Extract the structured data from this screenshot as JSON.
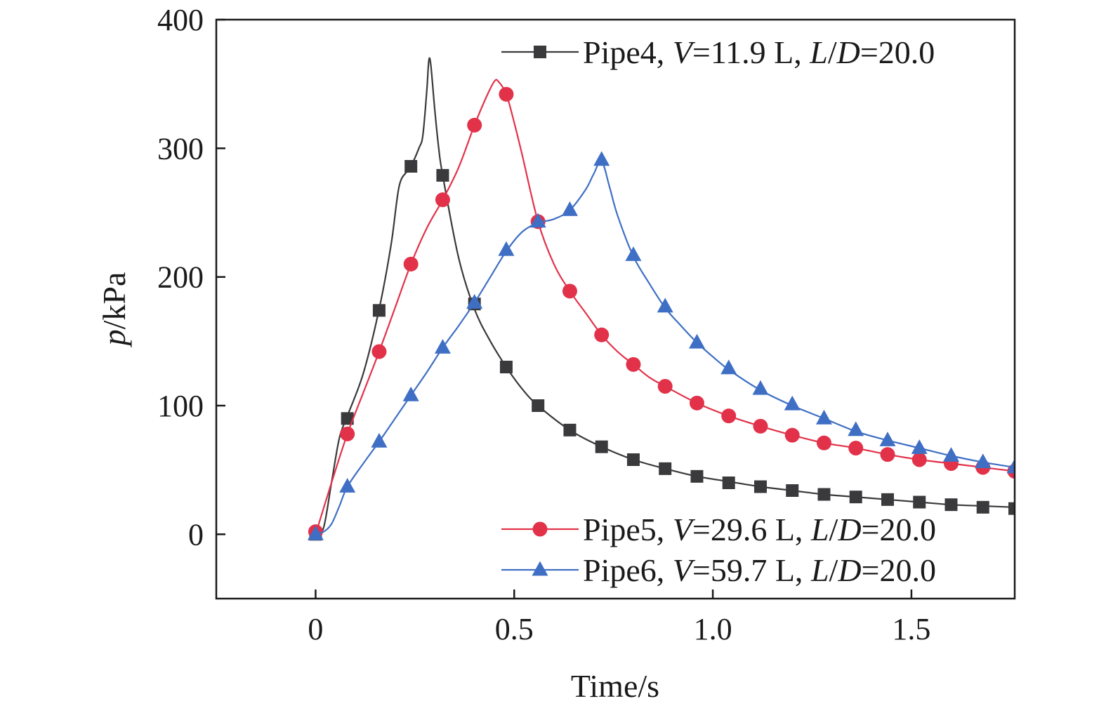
{
  "chart_data": {
    "type": "line",
    "title": "",
    "xlabel": "Time/s",
    "ylabel_var": "p",
    "ylabel_unit": "/kPa",
    "xlim": [
      -0.25,
      1.76
    ],
    "ylim": [
      -50,
      400
    ],
    "xticks": [
      0,
      0.5,
      1.0,
      1.5
    ],
    "xtick_labels": [
      "0",
      "0.5",
      "1.0",
      "1.5"
    ],
    "yticks": [
      0,
      100,
      200,
      300,
      400
    ],
    "ytick_labels": [
      "0",
      "100",
      "200",
      "300",
      "400"
    ],
    "grid": false,
    "legend_placement": "top-right and bottom-right",
    "series": [
      {
        "name": "Pipe4, V=11.9 L, L/D=20.0",
        "legend": {
          "prefix": "Pipe4, ",
          "var1": "V",
          "mid": "=11.9 L, ",
          "var2": "L/D",
          "suffix": "=20.0"
        },
        "color": "#3a3a3c",
        "marker": "square",
        "curve": [
          [
            0,
            0
          ],
          [
            0.02,
            5
          ],
          [
            0.04,
            40
          ],
          [
            0.06,
            75
          ],
          [
            0.08,
            92
          ],
          [
            0.12,
            125
          ],
          [
            0.16,
            175
          ],
          [
            0.19,
            225
          ],
          [
            0.21,
            270
          ],
          [
            0.23,
            282
          ],
          [
            0.24,
            286
          ],
          [
            0.26,
            300
          ],
          [
            0.27,
            310
          ],
          [
            0.28,
            345
          ],
          [
            0.285,
            368
          ],
          [
            0.29,
            365
          ],
          [
            0.3,
            330
          ],
          [
            0.31,
            300
          ],
          [
            0.32,
            279
          ],
          [
            0.36,
            215
          ],
          [
            0.4,
            175
          ],
          [
            0.44,
            150
          ],
          [
            0.48,
            130
          ],
          [
            0.52,
            113
          ],
          [
            0.56,
            100
          ],
          [
            0.64,
            81
          ],
          [
            0.72,
            68
          ],
          [
            0.8,
            58
          ],
          [
            0.88,
            51
          ],
          [
            0.96,
            45
          ],
          [
            1.04,
            41
          ],
          [
            1.12,
            37
          ],
          [
            1.2,
            34
          ],
          [
            1.28,
            31
          ],
          [
            1.36,
            29
          ],
          [
            1.44,
            27
          ],
          [
            1.52,
            25
          ],
          [
            1.6,
            23
          ],
          [
            1.68,
            22
          ],
          [
            1.76,
            21
          ]
        ],
        "markers": [
          [
            0,
            0
          ],
          [
            0.08,
            90
          ],
          [
            0.16,
            174
          ],
          [
            0.24,
            286
          ],
          [
            0.32,
            279
          ],
          [
            0.4,
            179
          ],
          [
            0.48,
            130
          ],
          [
            0.56,
            100
          ],
          [
            0.64,
            81
          ],
          [
            0.72,
            68
          ],
          [
            0.8,
            58
          ],
          [
            0.88,
            51
          ],
          [
            0.96,
            45
          ],
          [
            1.04,
            40
          ],
          [
            1.12,
            37
          ],
          [
            1.2,
            34
          ],
          [
            1.28,
            31
          ],
          [
            1.36,
            29
          ],
          [
            1.44,
            27
          ],
          [
            1.52,
            25
          ],
          [
            1.6,
            23
          ],
          [
            1.68,
            21
          ],
          [
            1.76,
            20
          ]
        ]
      },
      {
        "name": "Pipe5, V=29.6 L, L/D=20.0",
        "legend": {
          "prefix": "Pipe5, ",
          "var1": "V",
          "mid": "=29.6 L, ",
          "var2": "L/D",
          "suffix": "=20.0"
        },
        "color": "#e2324a",
        "marker": "circle",
        "curve": [
          [
            0,
            0
          ],
          [
            0.04,
            40
          ],
          [
            0.08,
            78
          ],
          [
            0.12,
            110
          ],
          [
            0.16,
            142
          ],
          [
            0.2,
            176
          ],
          [
            0.24,
            210
          ],
          [
            0.28,
            238
          ],
          [
            0.32,
            260
          ],
          [
            0.36,
            285
          ],
          [
            0.4,
            318
          ],
          [
            0.43,
            340
          ],
          [
            0.45,
            352
          ],
          [
            0.46,
            352
          ],
          [
            0.48,
            342
          ],
          [
            0.5,
            320
          ],
          [
            0.52,
            295
          ],
          [
            0.56,
            243
          ],
          [
            0.6,
            210
          ],
          [
            0.64,
            189
          ],
          [
            0.68,
            172
          ],
          [
            0.72,
            155
          ],
          [
            0.76,
            142
          ],
          [
            0.8,
            132
          ],
          [
            0.84,
            122
          ],
          [
            0.88,
            115
          ],
          [
            0.96,
            102
          ],
          [
            1.04,
            92
          ],
          [
            1.12,
            84
          ],
          [
            1.2,
            77
          ],
          [
            1.28,
            71
          ],
          [
            1.36,
            67
          ],
          [
            1.44,
            62
          ],
          [
            1.52,
            58
          ],
          [
            1.6,
            55
          ],
          [
            1.68,
            52
          ],
          [
            1.76,
            49
          ]
        ],
        "markers": [
          [
            0,
            2
          ],
          [
            0.08,
            78
          ],
          [
            0.16,
            142
          ],
          [
            0.24,
            210
          ],
          [
            0.32,
            260
          ],
          [
            0.4,
            318
          ],
          [
            0.48,
            342
          ],
          [
            0.56,
            243
          ],
          [
            0.64,
            189
          ],
          [
            0.72,
            155
          ],
          [
            0.8,
            132
          ],
          [
            0.88,
            115
          ],
          [
            0.96,
            102
          ],
          [
            1.04,
            92
          ],
          [
            1.12,
            84
          ],
          [
            1.2,
            77
          ],
          [
            1.28,
            71
          ],
          [
            1.36,
            67
          ],
          [
            1.44,
            62
          ],
          [
            1.52,
            58
          ],
          [
            1.6,
            55
          ],
          [
            1.68,
            52
          ],
          [
            1.76,
            49
          ]
        ]
      },
      {
        "name": "Pipe6, V=59.7 L, L/D=20.0",
        "legend": {
          "prefix": "Pipe6, ",
          "var1": "V",
          "mid": "=59.7 L, ",
          "var2": "L/D",
          "suffix": "=20.0"
        },
        "color": "#3f6fc4",
        "marker": "triangle",
        "curve": [
          [
            0,
            0
          ],
          [
            0.02,
            2
          ],
          [
            0.04,
            8
          ],
          [
            0.06,
            22
          ],
          [
            0.08,
            37
          ],
          [
            0.12,
            55
          ],
          [
            0.16,
            72
          ],
          [
            0.2,
            90
          ],
          [
            0.24,
            108
          ],
          [
            0.28,
            126
          ],
          [
            0.32,
            145
          ],
          [
            0.36,
            162
          ],
          [
            0.4,
            180
          ],
          [
            0.44,
            200
          ],
          [
            0.48,
            220
          ],
          [
            0.52,
            235
          ],
          [
            0.56,
            242
          ],
          [
            0.6,
            245
          ],
          [
            0.64,
            252
          ],
          [
            0.68,
            268
          ],
          [
            0.7,
            280
          ],
          [
            0.72,
            290
          ],
          [
            0.74,
            270
          ],
          [
            0.76,
            248
          ],
          [
            0.8,
            216
          ],
          [
            0.84,
            195
          ],
          [
            0.88,
            176
          ],
          [
            0.92,
            162
          ],
          [
            0.96,
            149
          ],
          [
            1.0,
            138
          ],
          [
            1.04,
            128
          ],
          [
            1.12,
            112
          ],
          [
            1.2,
            100
          ],
          [
            1.28,
            90
          ],
          [
            1.36,
            80
          ],
          [
            1.44,
            73
          ],
          [
            1.52,
            67
          ],
          [
            1.6,
            61
          ],
          [
            1.68,
            56
          ],
          [
            1.76,
            52
          ]
        ],
        "markers": [
          [
            0,
            0
          ],
          [
            0.08,
            37
          ],
          [
            0.16,
            72
          ],
          [
            0.24,
            108
          ],
          [
            0.32,
            145
          ],
          [
            0.4,
            180
          ],
          [
            0.48,
            221
          ],
          [
            0.56,
            243
          ],
          [
            0.64,
            252
          ],
          [
            0.72,
            291
          ],
          [
            0.8,
            217
          ],
          [
            0.88,
            177
          ],
          [
            0.96,
            149
          ],
          [
            1.04,
            129
          ],
          [
            1.12,
            113
          ],
          [
            1.2,
            101
          ],
          [
            1.28,
            90
          ],
          [
            1.36,
            81
          ],
          [
            1.44,
            73
          ],
          [
            1.52,
            67
          ],
          [
            1.6,
            61
          ],
          [
            1.68,
            56
          ],
          [
            1.76,
            52
          ]
        ]
      }
    ]
  }
}
